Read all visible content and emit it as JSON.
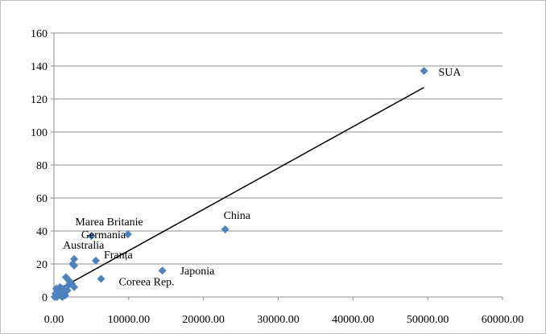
{
  "chart_data": {
    "type": "scatter",
    "title": "",
    "xlabel": "",
    "ylabel": "",
    "xlim": [
      0,
      60000
    ],
    "ylim": [
      0,
      160
    ],
    "grid": "horizontal",
    "legend": "none",
    "marker_color": "#4f81bd",
    "trendline_color": "#000000",
    "x_tick_labels": [
      "0.00",
      "10000.00",
      "20000.00",
      "30000.00",
      "40000.00",
      "50000.00",
      "60000.00"
    ],
    "y_tick_labels": [
      "0",
      "20",
      "40",
      "60",
      "80",
      "100",
      "120",
      "140",
      "160"
    ],
    "x_ticks": [
      0,
      10000,
      20000,
      30000,
      40000,
      50000,
      60000
    ],
    "y_ticks": [
      0,
      20,
      40,
      60,
      80,
      100,
      120,
      140,
      160
    ],
    "points": [
      {
        "x": 49500,
        "y": 137,
        "label": "SUA"
      },
      {
        "x": 22900,
        "y": 41,
        "label": "China"
      },
      {
        "x": 9900,
        "y": 38,
        "label": "Germania"
      },
      {
        "x": 5000,
        "y": 37,
        "label": "Marea Britanie"
      },
      {
        "x": 2700,
        "y": 23,
        "label": "Australia"
      },
      {
        "x": 5600,
        "y": 22,
        "label": "Franța"
      },
      {
        "x": 14500,
        "y": 16,
        "label": "Japonia"
      },
      {
        "x": 6300,
        "y": 11,
        "label": "Coreea Rep."
      },
      {
        "x": 2700,
        "y": 19,
        "label": ""
      },
      {
        "x": 2500,
        "y": 20,
        "label": ""
      },
      {
        "x": 1600,
        "y": 12,
        "label": ""
      },
      {
        "x": 2000,
        "y": 10,
        "label": ""
      },
      {
        "x": 2400,
        "y": 8,
        "label": ""
      },
      {
        "x": 2700,
        "y": 6,
        "label": ""
      },
      {
        "x": 1900,
        "y": 7,
        "label": ""
      },
      {
        "x": 1200,
        "y": 5,
        "label": ""
      },
      {
        "x": 800,
        "y": 6,
        "label": ""
      },
      {
        "x": 300,
        "y": 5,
        "label": ""
      },
      {
        "x": 600,
        "y": 3,
        "label": ""
      },
      {
        "x": 1000,
        "y": 2,
        "label": ""
      },
      {
        "x": 1400,
        "y": 3,
        "label": ""
      },
      {
        "x": 200,
        "y": 2,
        "label": ""
      },
      {
        "x": 500,
        "y": 1,
        "label": ""
      },
      {
        "x": 900,
        "y": 1,
        "label": ""
      },
      {
        "x": 1500,
        "y": 1,
        "label": ""
      },
      {
        "x": 100,
        "y": 0,
        "label": ""
      },
      {
        "x": 400,
        "y": 0,
        "label": ""
      },
      {
        "x": 1100,
        "y": 0,
        "label": ""
      },
      {
        "x": 1800,
        "y": 4,
        "label": ""
      }
    ],
    "trendline": {
      "x": [
        0,
        49500
      ],
      "y": [
        3,
        127
      ]
    }
  }
}
